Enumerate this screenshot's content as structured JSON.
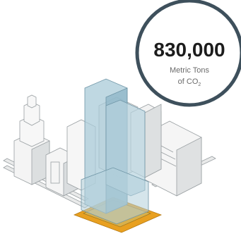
{
  "callout": {
    "value": "830,000",
    "unit_line1": "Metric Tons",
    "unit_line2": "of CO",
    "unit_subscript": "2"
  }
}
